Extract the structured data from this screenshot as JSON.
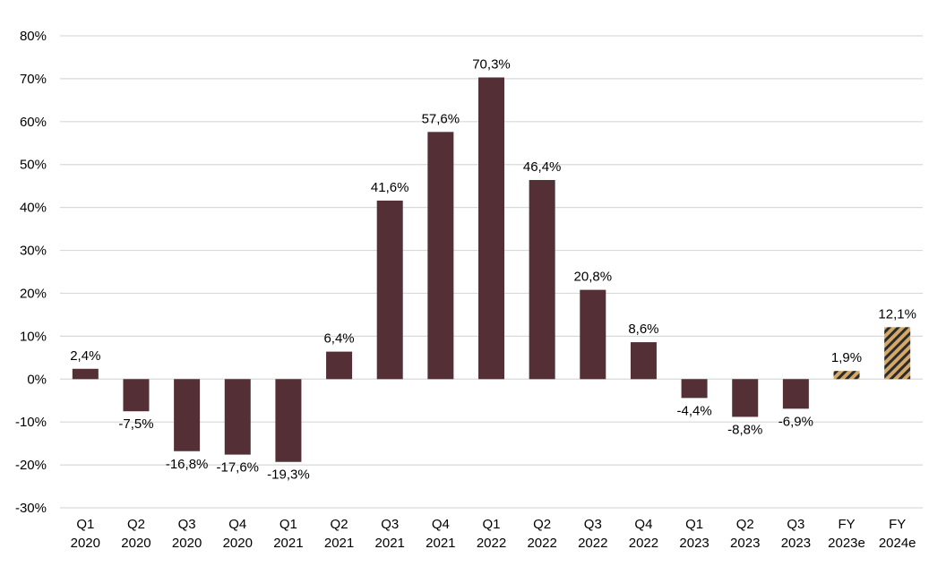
{
  "chart_data": {
    "type": "bar",
    "title": "",
    "xlabel": "",
    "ylabel": "",
    "ylim": [
      -30,
      80
    ],
    "y_ticks": [
      -30,
      -20,
      -10,
      0,
      10,
      20,
      30,
      40,
      50,
      60,
      70,
      80
    ],
    "y_tick_labels": [
      "-30%",
      "-20%",
      "-10%",
      "0%",
      "10%",
      "20%",
      "30%",
      "40%",
      "50%",
      "60%",
      "70%",
      "80%"
    ],
    "grid": true,
    "categories": [
      [
        "Q1",
        "2020"
      ],
      [
        "Q2",
        "2020"
      ],
      [
        "Q3",
        "2020"
      ],
      [
        "Q4",
        "2020"
      ],
      [
        "Q1",
        "2021"
      ],
      [
        "Q2",
        "2021"
      ],
      [
        "Q3",
        "2021"
      ],
      [
        "Q4",
        "2021"
      ],
      [
        "Q1",
        "2022"
      ],
      [
        "Q2",
        "2022"
      ],
      [
        "Q3",
        "2022"
      ],
      [
        "Q4",
        "2022"
      ],
      [
        "Q1",
        "2023"
      ],
      [
        "Q2",
        "2023"
      ],
      [
        "Q3",
        "2023"
      ],
      [
        "FY",
        "2023e"
      ],
      [
        "FY",
        "2024e"
      ]
    ],
    "values": [
      2.4,
      -7.5,
      -16.8,
      -17.6,
      -19.3,
      6.4,
      41.6,
      57.6,
      70.3,
      46.4,
      20.8,
      8.6,
      -4.4,
      -8.8,
      -6.9,
      1.9,
      12.1
    ],
    "data_labels": [
      "2,4%",
      "-7,5%",
      "-16,8%",
      "-17,6%",
      "-19,3%",
      "6,4%",
      "41,6%",
      "57,6%",
      "70,3%",
      "46,4%",
      "20,8%",
      "8,6%",
      "-4,4%",
      "-8,8%",
      "-6,9%",
      "1,9%",
      "12,1%"
    ],
    "estimate": [
      false,
      false,
      false,
      false,
      false,
      false,
      false,
      false,
      false,
      false,
      false,
      false,
      false,
      false,
      false,
      true,
      true
    ],
    "colors": {
      "actual": "#552f36",
      "estimate_stripe_a": "#d3a86a",
      "estimate_stripe_b": "#2b2b2b",
      "grid": "#d9d9d9"
    }
  }
}
